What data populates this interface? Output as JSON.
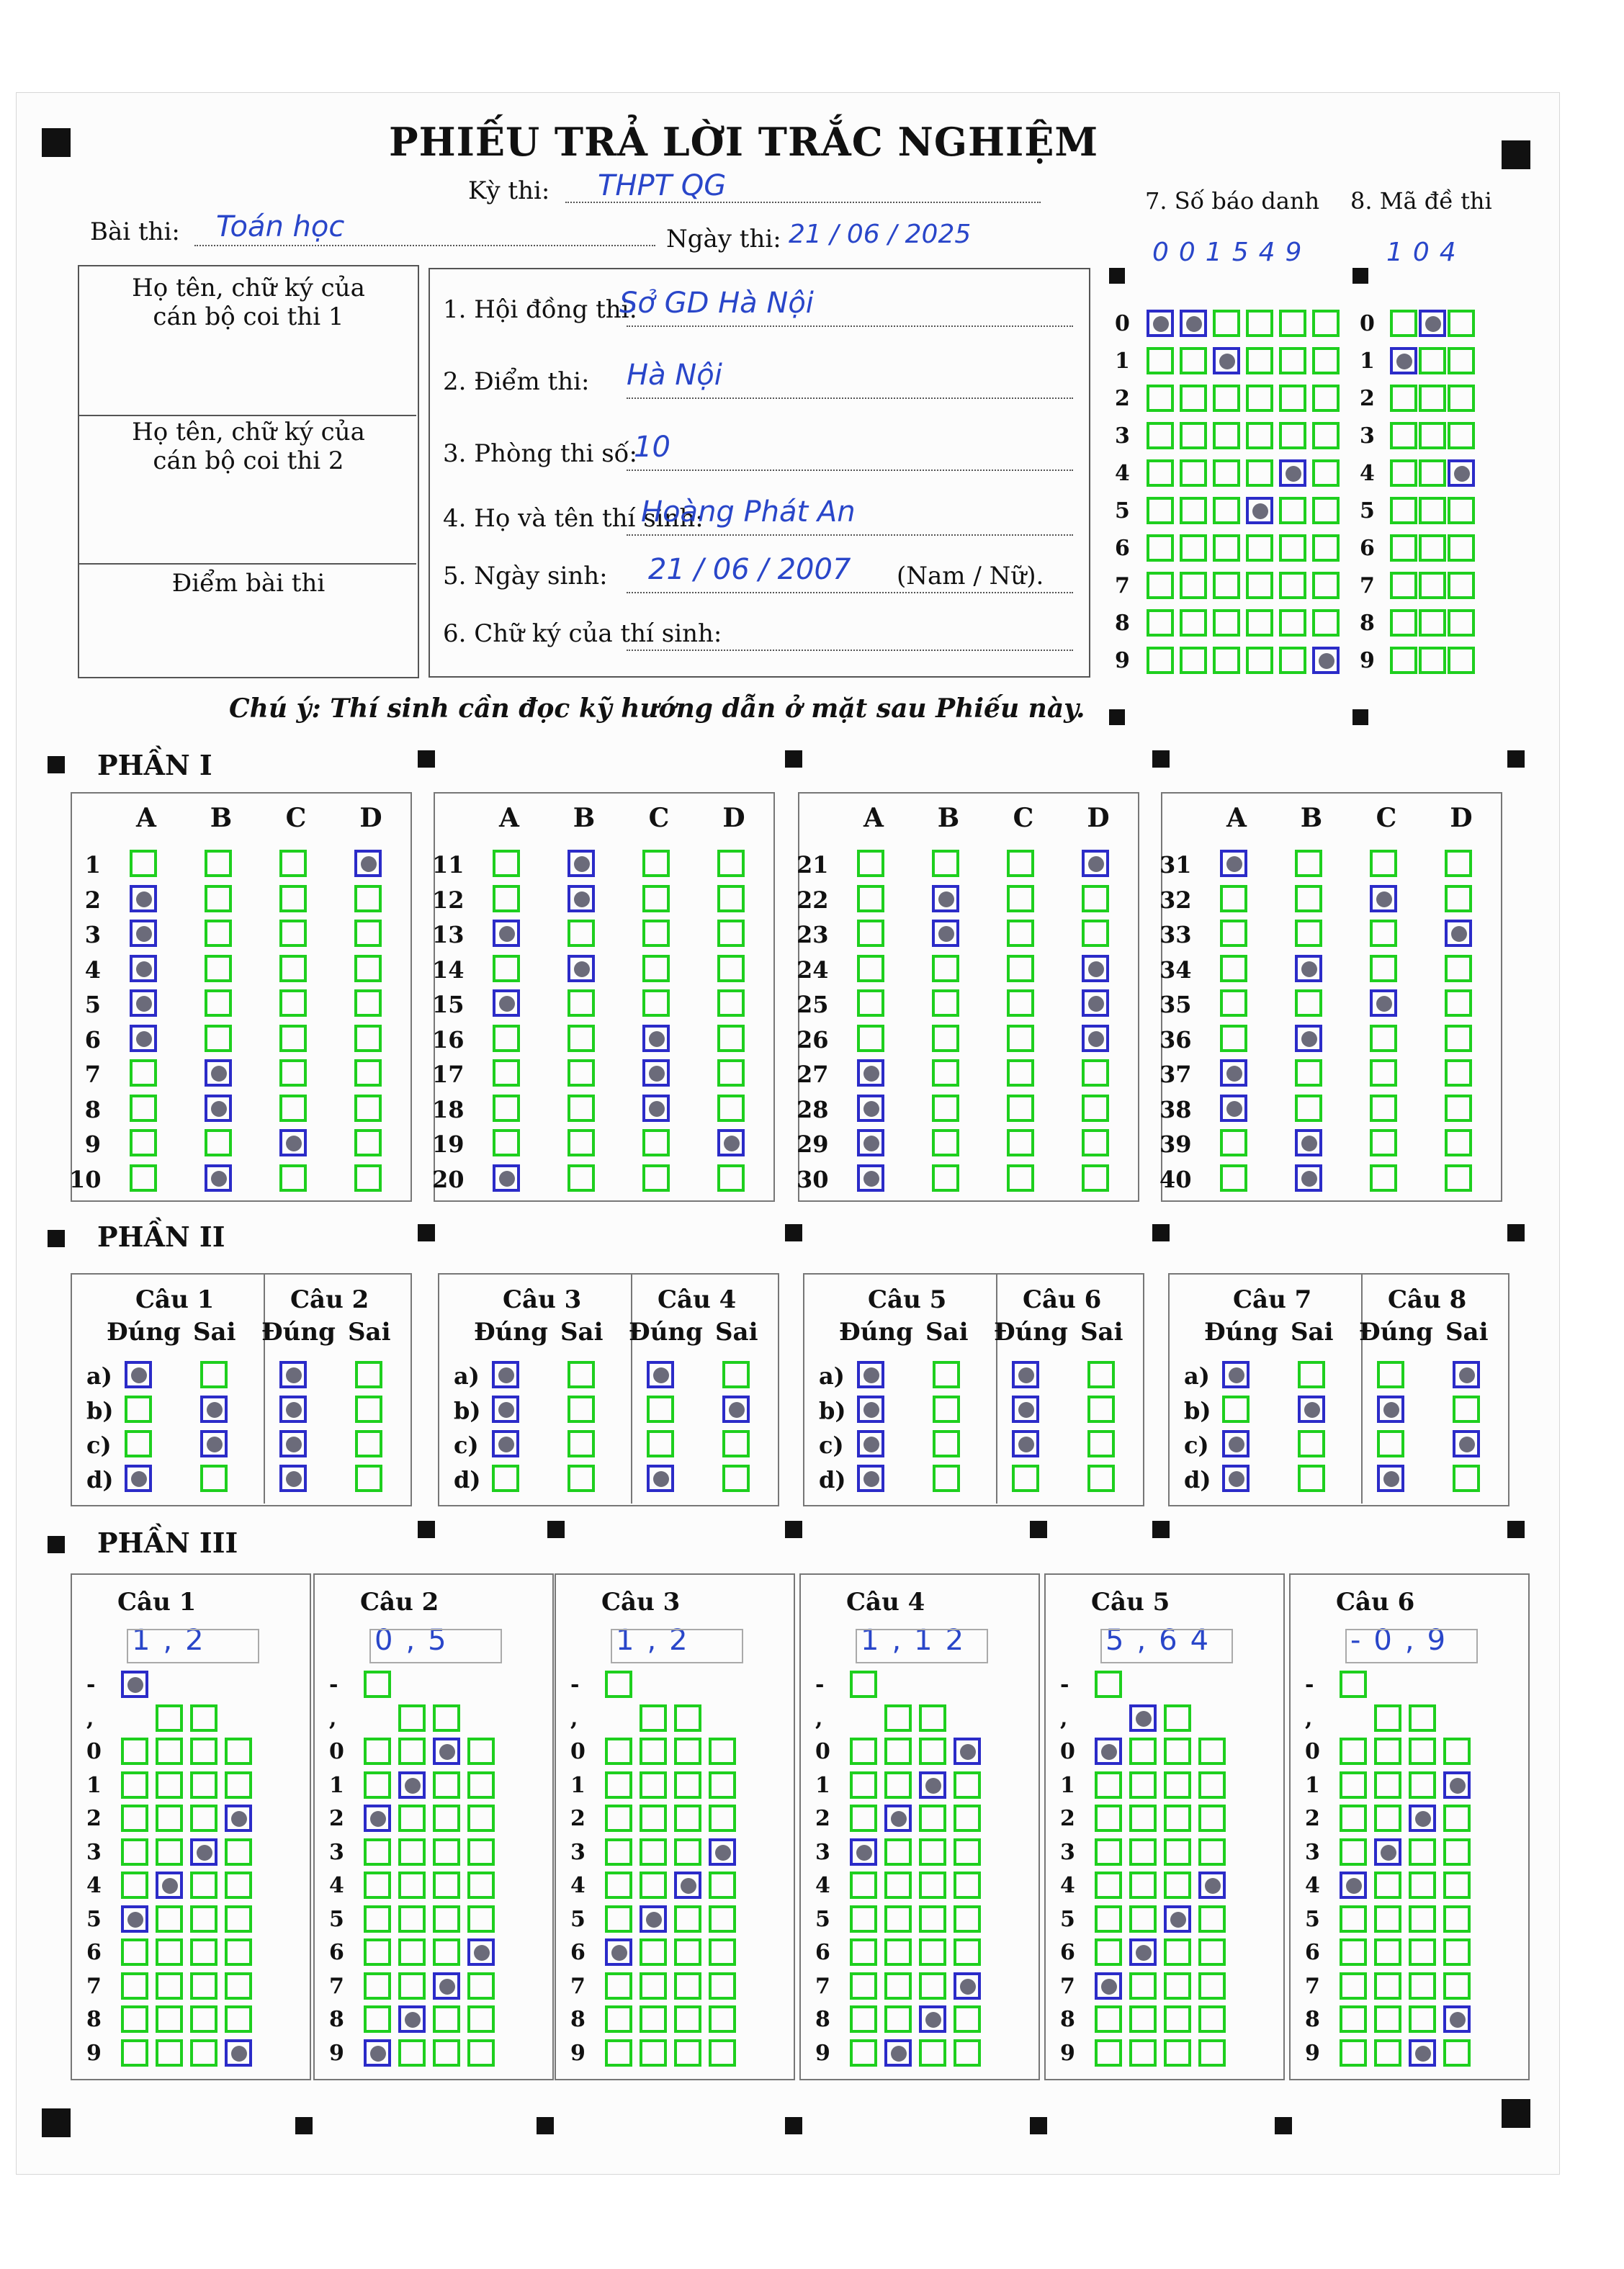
{
  "header": {
    "title": "PHIẾU TRẢ LỜI TRẮC NGHIỆM",
    "ky_thi_label": "Kỳ thi:",
    "ky_thi_value": "THPT QG",
    "bai_thi_label": "Bài thi:",
    "bai_thi_value": "Toán học",
    "ngay_thi_label": "Ngày thi:",
    "ngay_thi_value": "21 / 06 / 2025",
    "sbd_label": "7. Số báo danh",
    "sbd_value": "001549",
    "ma_de_label": "8. Mã đề thi",
    "ma_de_value": "104",
    "note": "Chú ý: Thí sinh cần đọc kỹ hướng dẫn ở mặt sau Phiếu này."
  },
  "left_table": {
    "cell1": "Họ tên, chữ ký của cán bộ coi thi 1",
    "cell2": "Họ tên, chữ ký của cán bộ coi thi 2",
    "cell3": "Điểm bài thi"
  },
  "info_fields": [
    {
      "label": "1. Hội đồng thi:",
      "value": "Sở GD Hà Nội"
    },
    {
      "label": "2. Điểm thi:",
      "value": "Hà Nội"
    },
    {
      "label": "3. Phòng thi số:",
      "value": "10"
    },
    {
      "label": "4. Họ và tên thí sinh:",
      "value": "Hoàng Phát An"
    },
    {
      "label": "5. Ngày sinh:",
      "value": "21 / 06 / 2007",
      "suffix": "(Nam / Nữ)."
    },
    {
      "label": "6. Chữ ký của thí sinh:",
      "value": ""
    }
  ],
  "digits": [
    "0",
    "1",
    "2",
    "3",
    "4",
    "5",
    "6",
    "7",
    "8",
    "9"
  ],
  "sections": {
    "p1": "PHẦN I",
    "p2": "PHẦN II",
    "p3": "PHẦN III"
  },
  "part1": {
    "options": [
      "A",
      "B",
      "C",
      "D"
    ],
    "answers": {
      "1": "D",
      "2": "A",
      "3": "A",
      "4": "A",
      "5": "A",
      "6": "A",
      "7": "B",
      "8": "B",
      "9": "C",
      "10": "B",
      "11": "B",
      "12": "B",
      "13": "A",
      "14": "B",
      "15": "A",
      "16": "C",
      "17": "C",
      "18": "C",
      "19": "D",
      "20": "A",
      "21": "D",
      "22": "B",
      "23": "B",
      "24": "D",
      "25": "D",
      "26": "D",
      "27": "A",
      "28": "A",
      "29": "A",
      "30": "A",
      "31": "A",
      "32": "C",
      "33": "D",
      "34": "B",
      "35": "C",
      "36": "B",
      "37": "A",
      "38": "A",
      "39": "B",
      "40": "B"
    }
  },
  "part2": {
    "headers": [
      "Câu 1",
      "Câu 2",
      "Câu 3",
      "Câu 4",
      "Câu 5",
      "Câu 6",
      "Câu 7",
      "Câu 8"
    ],
    "dung": "Đúng",
    "sai": "Sai",
    "rows": [
      "a)",
      "b)",
      "c)",
      "d)"
    ]
  },
  "part3": {
    "headers": [
      "Câu 1",
      "Câu 2",
      "Câu 3",
      "Câu 4",
      "Câu 5",
      "Câu 6"
    ],
    "written": [
      "1,2",
      "0,5",
      "1,2",
      "1,12",
      "5,64",
      "-0,9"
    ],
    "minus": "-",
    "comma": ","
  }
}
